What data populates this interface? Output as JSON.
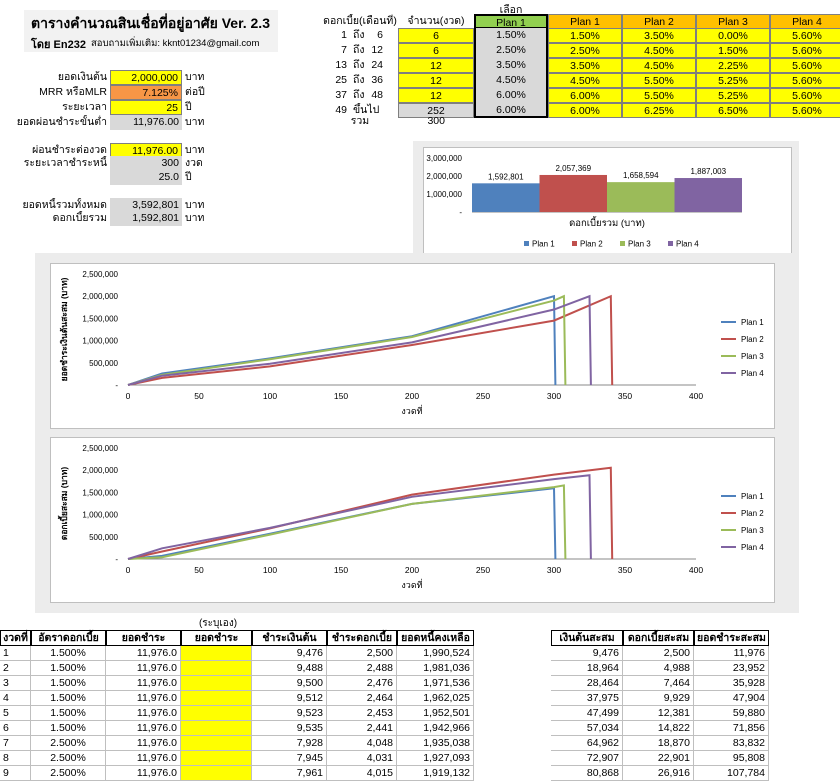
{
  "header": {
    "title": "ตารางคำนวณสินเชื่อที่อยู่อาศัย  Ver. 2.3",
    "author": "โดย En232",
    "contact": "สอบถามเพิ่มเติม:  kknt01234@gmail.com"
  },
  "inputs": {
    "principal_label": "ยอดเงินต้น",
    "principal_value": "2,000,000",
    "principal_unit": "บาท",
    "rate_label": "MRR หรือMLR",
    "rate_value": "7.125%",
    "rate_unit": "ต่อปี",
    "term_label": "ระยะเวลา",
    "term_value": "25",
    "term_unit": "ปี",
    "min_pay_label": "ยอดผ่อนชำระขั้นต่ำ",
    "min_pay_value": "11,976.00",
    "min_pay_unit": "บาท",
    "pay_label": "ผ่อนชำระต่องวด",
    "pay_value": "11,976.00",
    "pay_unit": "บาท",
    "period_label": "ระยะเวลาชำระหนี้",
    "period_value": "300",
    "period_unit": "งวด",
    "years_value": "25.0",
    "years_unit": "ปี",
    "total_label": "ยอดหนี้รวมทั้งหมด",
    "total_value": "3,592,801",
    "total_unit": "บาท",
    "interest_label": "ดอกเบี้ยรวม",
    "interest_value": "1,592,801",
    "interest_unit": "บาท"
  },
  "rate_table": {
    "select_label": "เลือก",
    "col_period": "ดอกเบี้ย(เดือนที่)",
    "col_count": "จำนวน(งวด)",
    "plans": [
      "Plan 1",
      "Plan 1",
      "Plan 2",
      "Plan 3",
      "Plan 4"
    ],
    "rows": [
      {
        "from": "1",
        "sep": "ถึง",
        "to": "6",
        "count": "6",
        "sel": "1.50%",
        "p1": "1.50%",
        "p2": "3.50%",
        "p3": "0.00%",
        "p4": "5.60%"
      },
      {
        "from": "7",
        "sep": "ถึง",
        "to": "12",
        "count": "6",
        "sel": "2.50%",
        "p1": "2.50%",
        "p2": "4.50%",
        "p3": "1.50%",
        "p4": "5.60%"
      },
      {
        "from": "13",
        "sep": "ถึง",
        "to": "24",
        "count": "12",
        "sel": "3.50%",
        "p1": "3.50%",
        "p2": "4.50%",
        "p3": "2.25%",
        "p4": "5.60%"
      },
      {
        "from": "25",
        "sep": "ถึง",
        "to": "36",
        "count": "12",
        "sel": "4.50%",
        "p1": "4.50%",
        "p2": "5.50%",
        "p3": "5.25%",
        "p4": "5.60%"
      },
      {
        "from": "37",
        "sep": "ถึง",
        "to": "48",
        "count": "12",
        "sel": "6.00%",
        "p1": "6.00%",
        "p2": "5.50%",
        "p3": "5.25%",
        "p4": "5.60%"
      },
      {
        "from": "49",
        "sep": "ขึ้นไป",
        "to": "",
        "count": "252",
        "sel": "6.00%",
        "p1": "6.00%",
        "p2": "6.25%",
        "p3": "6.50%",
        "p4": "5.60%"
      }
    ],
    "sum_label": "รวม",
    "sum_value": "300"
  },
  "colors": {
    "plan1": "#4f81bd",
    "plan2": "#c0504d",
    "plan3": "#9bbb59",
    "plan4": "#8064a2"
  },
  "chart_data": [
    {
      "type": "bar",
      "xlabel": "ดอกเบี้ยรวม (บาท)",
      "categories": [
        "Plan 1",
        "Plan 2",
        "Plan 3",
        "Plan 4"
      ],
      "values": [
        1592801,
        2057369,
        1658594,
        1887003
      ],
      "value_labels": [
        "1,592,801",
        "2,057,369",
        "1,658,594",
        "1,887,003"
      ],
      "ylim": [
        0,
        3000000
      ],
      "yticks": [
        "-",
        "1,000,000",
        "2,000,000",
        "3,000,000"
      ],
      "legend": [
        "Plan 1",
        "Plan 2",
        "Plan 3",
        "Plan 4"
      ],
      "legend_position": "bottom"
    },
    {
      "type": "line",
      "xlabel": "งวดที่",
      "ylabel": "ยอดชำระเงินต้นสะสม (บาท)",
      "xlim": [
        0,
        400
      ],
      "ylim": [
        0,
        2500000
      ],
      "xticks": [
        "0",
        "50",
        "100",
        "150",
        "200",
        "250",
        "300",
        "350",
        "400"
      ],
      "yticks": [
        "-",
        "500,000",
        "1,000,000",
        "1,500,000",
        "2,000,000",
        "2,500,000"
      ],
      "series": [
        {
          "name": "Plan 1",
          "x": [
            0,
            24,
            100,
            200,
            300,
            301
          ],
          "y": [
            0,
            260000,
            600000,
            1100000,
            2000000,
            0
          ]
        },
        {
          "name": "Plan 2",
          "x": [
            0,
            24,
            100,
            200,
            300,
            340,
            341
          ],
          "y": [
            0,
            160000,
            420000,
            900000,
            1450000,
            2000000,
            0
          ]
        },
        {
          "name": "Plan 3",
          "x": [
            0,
            24,
            100,
            200,
            300,
            307,
            308
          ],
          "y": [
            0,
            230000,
            580000,
            1080000,
            1900000,
            2000000,
            0
          ]
        },
        {
          "name": "Plan 4",
          "x": [
            0,
            24,
            100,
            200,
            300,
            325,
            326
          ],
          "y": [
            0,
            210000,
            480000,
            960000,
            1700000,
            2000000,
            0
          ]
        }
      ],
      "legend_position": "right"
    },
    {
      "type": "line",
      "xlabel": "งวดที่",
      "ylabel": "ดอกเบี้ยสะสม (บาท)",
      "xlim": [
        0,
        400
      ],
      "ylim": [
        0,
        2500000
      ],
      "xticks": [
        "0",
        "50",
        "100",
        "150",
        "200",
        "250",
        "300",
        "350",
        "400"
      ],
      "yticks": [
        "-",
        "500,000",
        "1,000,000",
        "1,500,000",
        "2,000,000",
        "2,500,000"
      ],
      "series": [
        {
          "name": "Plan 1",
          "x": [
            0,
            24,
            100,
            200,
            300,
            301
          ],
          "y": [
            0,
            70000,
            570000,
            1240000,
            1592801,
            0
          ]
        },
        {
          "name": "Plan 2",
          "x": [
            0,
            24,
            100,
            200,
            300,
            340,
            341
          ],
          "y": [
            0,
            170000,
            690000,
            1450000,
            1900000,
            2057369,
            0
          ]
        },
        {
          "name": "Plan 3",
          "x": [
            0,
            24,
            100,
            200,
            300,
            307,
            308
          ],
          "y": [
            0,
            40000,
            550000,
            1240000,
            1620000,
            1658594,
            0
          ]
        },
        {
          "name": "Plan 4",
          "x": [
            0,
            24,
            100,
            200,
            300,
            325,
            326
          ],
          "y": [
            0,
            240000,
            700000,
            1400000,
            1800000,
            1887003,
            0
          ]
        }
      ],
      "legend_position": "right"
    }
  ],
  "schedule": {
    "note": "(ระบุเอง)",
    "headers": [
      "งวดที่",
      "อัตราดอกเบี้ย",
      "ยอดชำระ",
      "ยอดชำระ",
      "ชำระเงินต้น",
      "ชำระดอกเบี้ย",
      "ยอดหนี้คงเหลือ"
    ],
    "rows": [
      [
        "1",
        "1.500%",
        "11,976.0",
        "",
        "9,476",
        "2,500",
        "1,990,524"
      ],
      [
        "2",
        "1.500%",
        "11,976.0",
        "",
        "9,488",
        "2,488",
        "1,981,036"
      ],
      [
        "3",
        "1.500%",
        "11,976.0",
        "",
        "9,500",
        "2,476",
        "1,971,536"
      ],
      [
        "4",
        "1.500%",
        "11,976.0",
        "",
        "9,512",
        "2,464",
        "1,962,025"
      ],
      [
        "5",
        "1.500%",
        "11,976.0",
        "",
        "9,523",
        "2,453",
        "1,952,501"
      ],
      [
        "6",
        "1.500%",
        "11,976.0",
        "",
        "9,535",
        "2,441",
        "1,942,966"
      ],
      [
        "7",
        "2.500%",
        "11,976.0",
        "",
        "7,928",
        "4,048",
        "1,935,038"
      ],
      [
        "8",
        "2.500%",
        "11,976.0",
        "",
        "7,945",
        "4,031",
        "1,927,093"
      ],
      [
        "9",
        "2.500%",
        "11,976.0",
        "",
        "7,961",
        "4,015",
        "1,919,132"
      ]
    ],
    "cum_headers": [
      "เงินต้นสะสม",
      "ดอกเบี้ยสะสม",
      "ยอดชำระสะสม"
    ],
    "cum_rows": [
      [
        "9,476",
        "2,500",
        "11,976"
      ],
      [
        "18,964",
        "4,988",
        "23,952"
      ],
      [
        "28,464",
        "7,464",
        "35,928"
      ],
      [
        "37,975",
        "9,929",
        "47,904"
      ],
      [
        "47,499",
        "12,381",
        "59,880"
      ],
      [
        "57,034",
        "14,822",
        "71,856"
      ],
      [
        "64,962",
        "18,870",
        "83,832"
      ],
      [
        "72,907",
        "22,901",
        "95,808"
      ],
      [
        "80,868",
        "26,916",
        "107,784"
      ]
    ]
  }
}
